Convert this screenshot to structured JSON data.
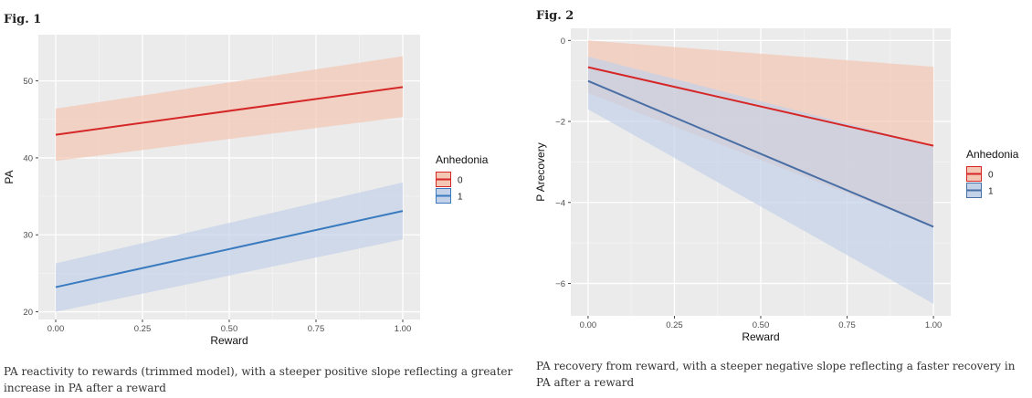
{
  "figures": [
    {
      "label": "Fig. 1",
      "caption": "PA reactivity to rewards (trimmed model), with a steeper positive slope reflecting a greater increase in PA after a reward",
      "chart_data": {
        "type": "line",
        "xlabel": "Reward",
        "ylabel": "PA",
        "xlim": [
          -0.05,
          1.05
        ],
        "ylim": [
          19,
          56
        ],
        "xticks": [
          0,
          0.25,
          0.5,
          0.75,
          1
        ],
        "xtick_labels": [
          "0.00",
          "0.25",
          "0.50",
          "0.75",
          "1.00"
        ],
        "yticks": [
          20,
          30,
          40,
          50
        ],
        "ytick_labels": [
          "20",
          "30",
          "40",
          "50"
        ],
        "legend_title": "Anhedonia",
        "legend_position": "right",
        "grid": true,
        "series": [
          {
            "name": "0",
            "color": "#d62728",
            "fill": "#f4c6b4",
            "x": [
              0,
              1
            ],
            "y": [
              43.0,
              49.2
            ],
            "lower": [
              39.6,
              45.3
            ],
            "upper": [
              46.4,
              53.2
            ]
          },
          {
            "name": "1",
            "color": "#3a7bbf",
            "fill": "#c3d2e8",
            "x": [
              0,
              1
            ],
            "y": [
              23.2,
              33.1
            ],
            "lower": [
              20.0,
              29.4
            ],
            "upper": [
              26.3,
              36.8
            ]
          }
        ]
      }
    },
    {
      "label": "Fig. 2",
      "caption": "PA recovery from reward, with a steeper negative slope reflecting a faster recovery in PA after a reward",
      "chart_data": {
        "type": "line",
        "xlabel": "Reward",
        "ylabel": "P Arecovery",
        "xlim": [
          -0.05,
          1.05
        ],
        "ylim": [
          -6.8,
          0.3
        ],
        "xticks": [
          0,
          0.25,
          0.5,
          0.75,
          1
        ],
        "xtick_labels": [
          "0.00",
          "0.25",
          "0.50",
          "0.75",
          "1.00"
        ],
        "yticks": [
          -6,
          -4,
          -2,
          0
        ],
        "ytick_labels": [
          "−6",
          "−4",
          "−2",
          "0"
        ],
        "legend_title": "Anhedonia",
        "legend_position": "right",
        "grid": true,
        "series": [
          {
            "name": "0",
            "color": "#d62728",
            "fill": "#f4c6b4",
            "x": [
              0,
              1
            ],
            "y": [
              -0.66,
              -2.6
            ],
            "lower": [
              -1.3,
              -4.6
            ],
            "upper": [
              0.0,
              -0.65
            ]
          },
          {
            "name": "1",
            "color": "#4a6fa5",
            "fill": "#c3d2e8",
            "x": [
              0,
              1
            ],
            "y": [
              -1.0,
              -4.6
            ],
            "lower": [
              -1.7,
              -6.5
            ],
            "upper": [
              -0.4,
              -2.6
            ]
          }
        ]
      }
    }
  ]
}
